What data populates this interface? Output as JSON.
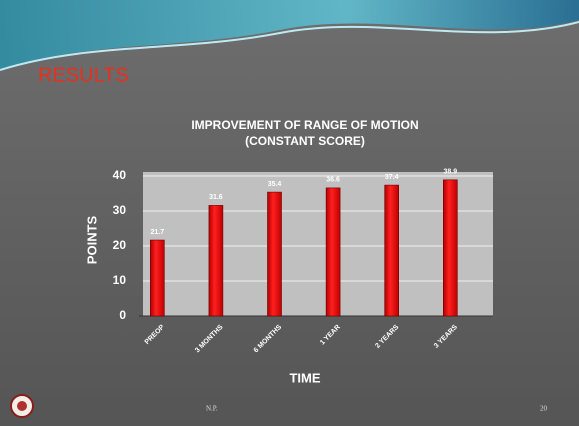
{
  "slide": {
    "heading": "RESULTS",
    "footer": "N.P.",
    "page_number": "20"
  },
  "chart_data": {
    "type": "bar",
    "title": "IMPROVEMENT OF RANGE OF MOTION",
    "subtitle": "(CONSTANT SCORE)",
    "x_label": "TIME",
    "y_label": "POINTS",
    "categories": [
      "PREOP",
      "3 MONTHS",
      "6 MONTHS",
      "1 YEAR",
      "2 YEARS",
      "3 YEARS"
    ],
    "values": [
      21.7,
      31.6,
      35.4,
      36.6,
      37.4,
      38.9
    ],
    "color": "#ff0000",
    "ylim": [
      0,
      40
    ],
    "yticks": [
      0,
      10,
      20,
      30,
      40
    ],
    "grid": true
  }
}
